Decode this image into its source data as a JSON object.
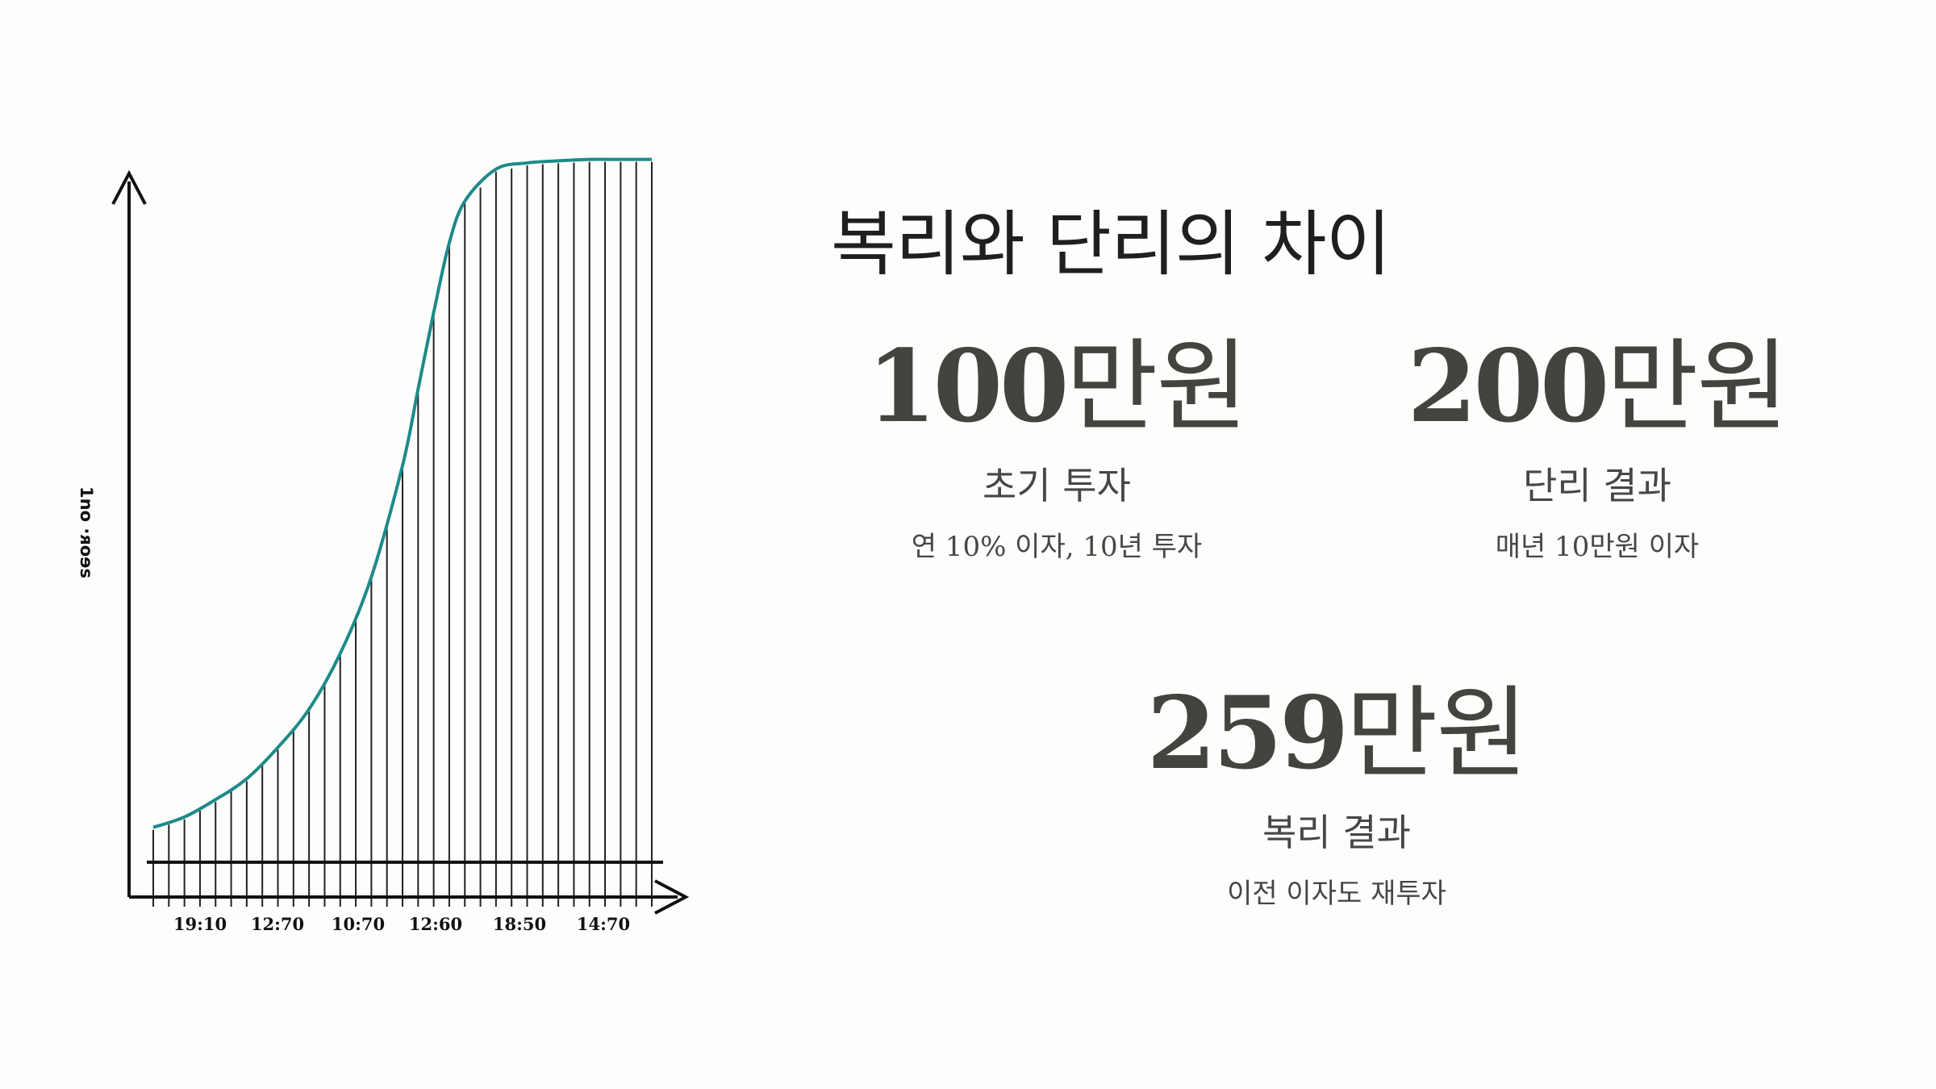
{
  "chart_data": {
    "type": "area",
    "ylabel": "1no ·ᴙoɘs",
    "xlabel": "",
    "x_tick_labels": [
      "19:10",
      "12:70",
      "10:70",
      "12:60",
      "18:50",
      "14:70"
    ],
    "curve_x": [
      0,
      4,
      8,
      12,
      16,
      20,
      24,
      28,
      32,
      34,
      36,
      38,
      40,
      44,
      48,
      52,
      56,
      60,
      64
    ],
    "curve_y": [
      5,
      6.5,
      9,
      12,
      16.5,
      22,
      30,
      41,
      57,
      68,
      79,
      89,
      95,
      99.6,
      100.5,
      100.8,
      101,
      101,
      101
    ],
    "xlim": [
      0,
      64
    ],
    "ylim": [
      -5,
      110
    ],
    "baseline": 0,
    "hatch_lines": 33,
    "curve_color": "#1e8a8a",
    "axis_color": "#111111"
  },
  "title": "복리와 단리의 차이",
  "stats": [
    {
      "number": "100",
      "unit": "만원",
      "label": "초기 투자",
      "note": "연 10% 이자, 10년 투자"
    },
    {
      "number": "200",
      "unit": "만원",
      "label": "단리 결과",
      "note": "매년 10만원 이자"
    },
    {
      "number": "259",
      "unit": "만원",
      "label": "복리 결과",
      "note": "이전 이자도 재투자"
    }
  ]
}
